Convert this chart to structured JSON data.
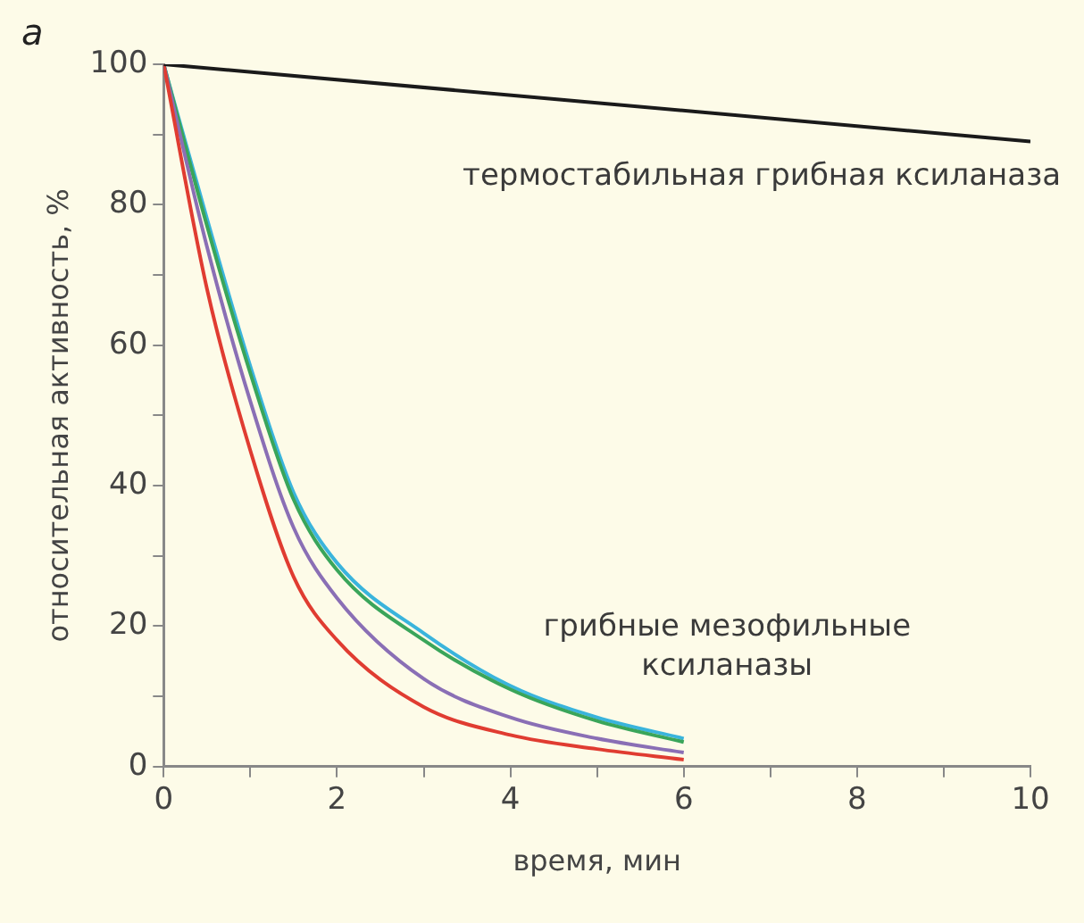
{
  "chart_data": {
    "type": "line",
    "xlabel": "время, мин",
    "ylabel": "относительная активность, %",
    "xlim": [
      0,
      10
    ],
    "ylim": [
      0,
      100
    ],
    "xticks": [
      0,
      {
        "value": 1,
        "label": null
      },
      2,
      {
        "value": 3,
        "label": null
      },
      4,
      {
        "value": 5,
        "label": null
      },
      6,
      {
        "value": 7,
        "label": null
      },
      8,
      {
        "value": 9,
        "label": null
      },
      10
    ],
    "yticks": [
      0,
      {
        "value": 10,
        "label": null
      },
      20,
      {
        "value": 30,
        "label": null
      },
      40,
      {
        "value": 50,
        "label": null
      },
      60,
      {
        "value": 70,
        "label": null
      },
      80,
      {
        "value": 90,
        "label": null
      },
      100
    ],
    "grid": false,
    "legend": false,
    "marker": "none",
    "line_style": "solid",
    "annotations": [
      "a",
      "термостабильная грибная ксиланаза",
      "грибные мезофильные\nксиланазы"
    ],
    "series": [
      {
        "color": "#1a1a1a",
        "x": [
          0,
          10
        ],
        "values": [
          100,
          89
        ]
      },
      {
        "color": "#e03c31",
        "x": [
          0,
          0.5,
          1,
          1.5,
          2,
          3,
          4,
          5,
          6
        ],
        "values": [
          100,
          68,
          45,
          27,
          18,
          8.5,
          4.5,
          2.5,
          1
        ]
      },
      {
        "color": "#8a6fb5",
        "x": [
          0,
          0.5,
          1,
          1.5,
          2,
          3,
          4,
          5,
          6
        ],
        "values": [
          100,
          74,
          52,
          34,
          24,
          12.5,
          7,
          4,
          2
        ]
      },
      {
        "color": "#3aa55a",
        "x": [
          0,
          0.5,
          1,
          1.5,
          2,
          3,
          4,
          5,
          6
        ],
        "values": [
          100,
          77,
          56,
          38,
          28,
          18,
          11,
          6.5,
          3.5
        ]
      },
      {
        "color": "#3ab4dc",
        "x": [
          0,
          0.5,
          1,
          1.5,
          2,
          3,
          4,
          5,
          6
        ],
        "values": [
          100,
          78,
          57,
          39,
          29,
          19,
          11.5,
          7,
          4
        ]
      }
    ]
  }
}
